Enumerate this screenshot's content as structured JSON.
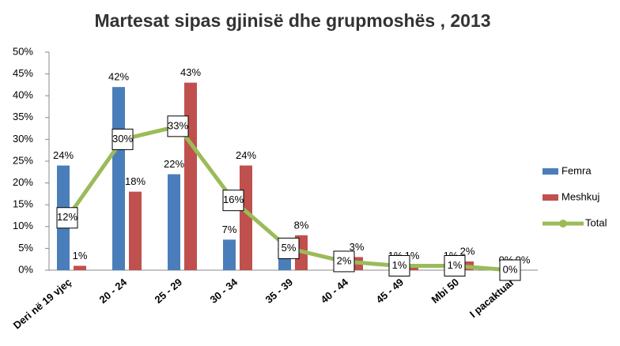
{
  "chart_data": {
    "type": "bar-line",
    "title": "Martesat sipas gjinisë dhe grupmoshës , 2013",
    "categories": [
      "Deri në 19 vjeç",
      "20 - 24",
      "25 - 29",
      "30 - 34",
      "35 - 39",
      "40 - 44",
      "45 - 49",
      "Mbi 50",
      "I pacaktuar"
    ],
    "series": [
      {
        "name": "Femra",
        "color": "#4a7ebb",
        "kind": "bar",
        "values": [
          24,
          42,
          22,
          7,
          3,
          1,
          1,
          1,
          0
        ],
        "value_labels": [
          "24%",
          "42%",
          "22%",
          "7%",
          "3%",
          "1%",
          "1%",
          "1%",
          "0%"
        ]
      },
      {
        "name": "Meshkuj",
        "color": "#c0504d",
        "kind": "bar",
        "values": [
          1,
          18,
          43,
          24,
          8,
          3,
          1,
          2,
          0
        ],
        "value_labels": [
          "1%",
          "18%",
          "43%",
          "24%",
          "8%",
          "3%",
          "1%",
          "2%",
          "0%"
        ]
      },
      {
        "name": "Total",
        "color": "#9bbb59",
        "kind": "line",
        "values": [
          12,
          30,
          33,
          16,
          5,
          2,
          1,
          1,
          0
        ],
        "value_labels": [
          "12%",
          "30%",
          "33%",
          "16%",
          "5%",
          "2%",
          "1%",
          "1%",
          "0%"
        ]
      }
    ],
    "ylim": [
      0,
      50
    ],
    "yticks": [
      {
        "value": 0,
        "label": "0%"
      },
      {
        "value": 5,
        "label": "5%"
      },
      {
        "value": 10,
        "label": "10%"
      },
      {
        "value": 15,
        "label": "15%"
      },
      {
        "value": 20,
        "label": "20%"
      },
      {
        "value": 25,
        "label": "25%"
      },
      {
        "value": 30,
        "label": "30%"
      },
      {
        "value": 35,
        "label": "35%"
      },
      {
        "value": 40,
        "label": "40%"
      },
      {
        "value": 45,
        "label": "45%"
      },
      {
        "value": 50,
        "label": "50%"
      }
    ],
    "legend": "right"
  }
}
